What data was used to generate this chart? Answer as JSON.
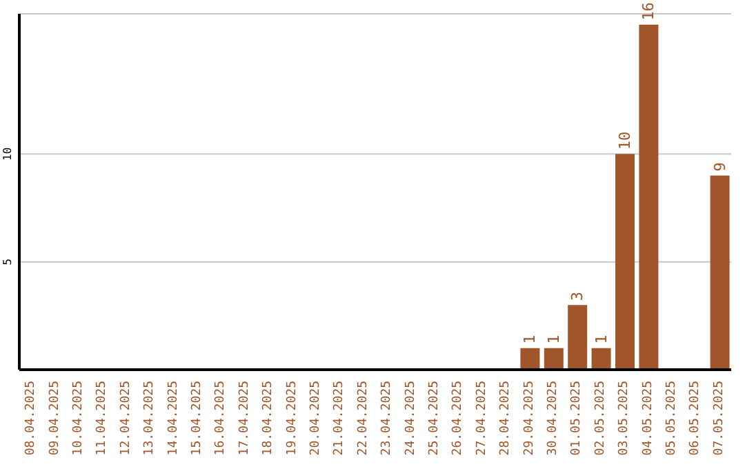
{
  "chart_data": {
    "type": "bar",
    "categories": [
      "08.04.2025",
      "09.04.2025",
      "10.04.2025",
      "11.04.2025",
      "12.04.2025",
      "13.04.2025",
      "14.04.2025",
      "15.04.2025",
      "16.04.2025",
      "17.04.2025",
      "18.04.2025",
      "19.04.2025",
      "20.04.2025",
      "21.04.2025",
      "22.04.2025",
      "23.04.2025",
      "24.04.2025",
      "25.04.2025",
      "26.04.2025",
      "27.04.2025",
      "28.04.2025",
      "29.04.2025",
      "30.04.2025",
      "01.05.2025",
      "02.05.2025",
      "03.05.2025",
      "04.05.2025",
      "05.05.2025",
      "06.05.2025",
      "07.05.2025"
    ],
    "values": [
      null,
      null,
      null,
      null,
      null,
      null,
      null,
      null,
      null,
      null,
      null,
      null,
      null,
      null,
      null,
      null,
      null,
      null,
      null,
      null,
      null,
      1,
      1,
      3,
      1,
      10,
      16,
      null,
      null,
      9
    ],
    "color": "#a0562a",
    "ylim": [
      0,
      16.5
    ],
    "yticks": [
      5,
      10
    ],
    "grid": "y",
    "data_labels": true
  }
}
